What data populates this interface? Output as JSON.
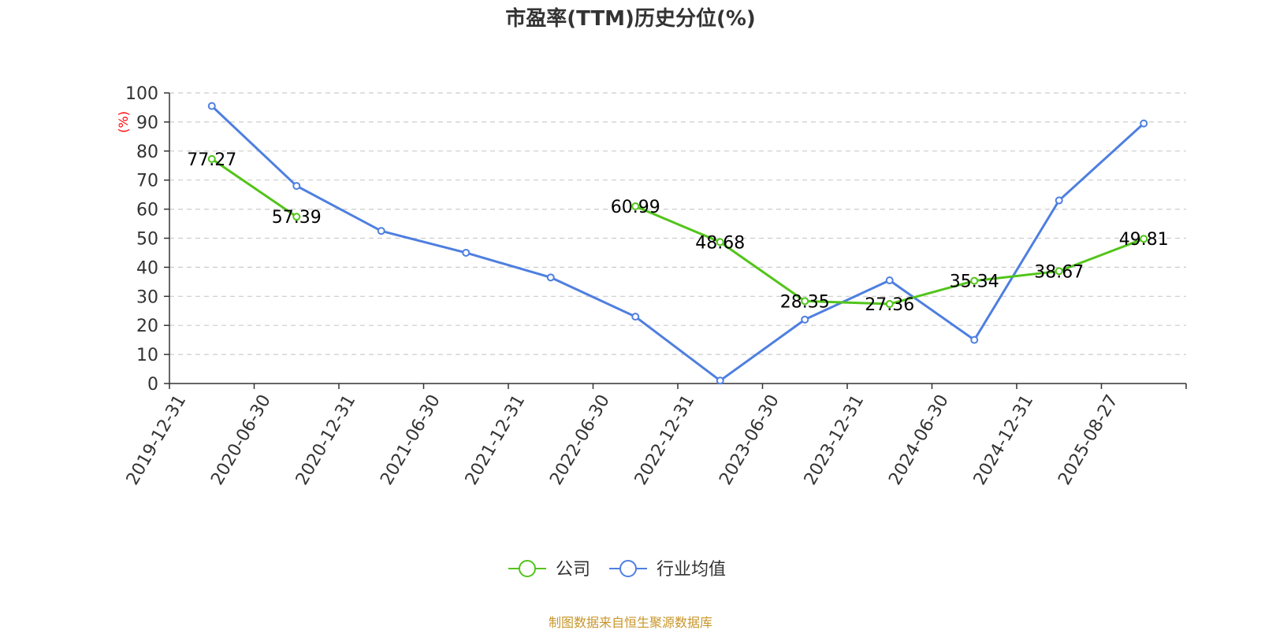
{
  "chart_data": {
    "type": "line",
    "title": "市盈率(TTM)历史分位(%)",
    "ylabel": "(%)",
    "xlabel": "",
    "ylim": [
      0,
      100
    ],
    "yticks": [
      0,
      10,
      20,
      30,
      40,
      50,
      60,
      70,
      80,
      90,
      100
    ],
    "grid": true,
    "legend_position": "bottom-center",
    "categories": [
      "2019-12-31",
      "2020-06-30",
      "2020-12-31",
      "2021-06-30",
      "2021-12-31",
      "2022-06-30",
      "2022-12-31",
      "2023-06-30",
      "2023-12-31",
      "2024-06-30",
      "2024-12-31",
      "2025-08-27"
    ],
    "series": [
      {
        "name": "公司",
        "color": "#52c41a",
        "values": [
          77.27,
          57.39,
          null,
          null,
          null,
          60.99,
          48.68,
          28.35,
          27.36,
          35.34,
          38.67,
          49.81
        ],
        "labels": [
          "77.27",
          "57.39",
          null,
          null,
          null,
          "60.99",
          "48.68",
          "28.35",
          "27.36",
          "35.34",
          "38.67",
          "49.81"
        ]
      },
      {
        "name": "行业均值",
        "color": "#4e7fe0",
        "values": [
          95.5,
          68,
          52.5,
          45,
          36.5,
          23,
          1,
          22,
          35.5,
          15,
          63,
          89.5
        ]
      }
    ]
  },
  "source": {
    "text": "制图数据来自恒生聚源数据库",
    "color": "#c8962a"
  }
}
